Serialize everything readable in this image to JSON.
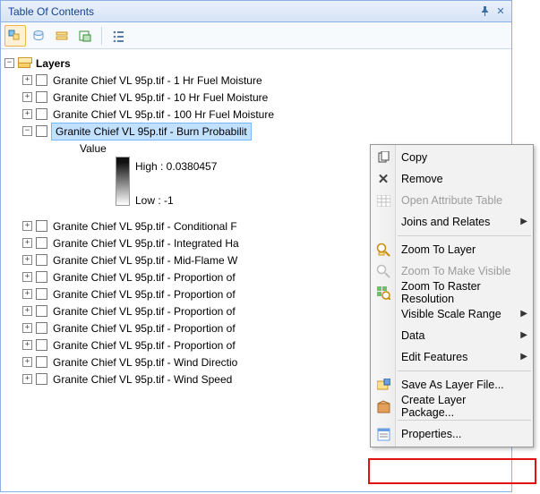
{
  "panel": {
    "title": "Table Of Contents",
    "pin_icon": "pin",
    "close_icon": "close"
  },
  "tree": {
    "root_label": "Layers",
    "layers": [
      {
        "label": "Granite Chief VL 95p.tif - 1 Hr Fuel Moisture",
        "expanded": false,
        "selected": false
      },
      {
        "label": "Granite Chief VL 95p.tif - 10 Hr Fuel Moisture",
        "expanded": false,
        "selected": false
      },
      {
        "label": "Granite Chief VL 95p.tif - 100 Hr Fuel Moisture",
        "expanded": false,
        "selected": false
      },
      {
        "label": "Granite Chief VL 95p.tif - Burn Probabilit",
        "expanded": true,
        "selected": true,
        "value_label": "Value",
        "high_label": "High : 0.0380457",
        "low_label": "Low : -1"
      },
      {
        "label": "Granite Chief VL 95p.tif - Conditional F",
        "expanded": false,
        "selected": false
      },
      {
        "label": "Granite Chief VL 95p.tif - Integrated Ha",
        "expanded": false,
        "selected": false
      },
      {
        "label": "Granite Chief VL 95p.tif - Mid-Flame W",
        "expanded": false,
        "selected": false
      },
      {
        "label": "Granite Chief VL 95p.tif - Proportion of",
        "expanded": false,
        "selected": false
      },
      {
        "label": "Granite Chief VL 95p.tif - Proportion of",
        "expanded": false,
        "selected": false
      },
      {
        "label": "Granite Chief VL 95p.tif - Proportion of",
        "expanded": false,
        "selected": false
      },
      {
        "label": "Granite Chief VL 95p.tif - Proportion of",
        "expanded": false,
        "selected": false
      },
      {
        "label": "Granite Chief VL 95p.tif - Proportion of",
        "expanded": false,
        "selected": false
      },
      {
        "label": "Granite Chief VL 95p.tif - Wind Directio",
        "expanded": false,
        "selected": false
      },
      {
        "label": "Granite Chief VL 95p.tif - Wind Speed",
        "expanded": false,
        "selected": false
      }
    ]
  },
  "context_menu": {
    "items": [
      {
        "label": "Copy",
        "icon": "copy",
        "enabled": true,
        "submenu": false
      },
      {
        "label": "Remove",
        "icon": "remove",
        "enabled": true,
        "submenu": false
      },
      {
        "label": "Open Attribute Table",
        "icon": "table",
        "enabled": false,
        "submenu": false
      },
      {
        "label": "Joins and Relates",
        "icon": "",
        "enabled": true,
        "submenu": true
      },
      {
        "sep": true
      },
      {
        "label": "Zoom To Layer",
        "icon": "zoom",
        "enabled": true,
        "submenu": false
      },
      {
        "label": "Zoom To Make Visible",
        "icon": "zoomvis",
        "enabled": false,
        "submenu": false
      },
      {
        "label": "Zoom To Raster Resolution",
        "icon": "zoomras",
        "enabled": true,
        "submenu": false
      },
      {
        "label": "Visible Scale Range",
        "icon": "",
        "enabled": true,
        "submenu": true
      },
      {
        "label": "Data",
        "icon": "",
        "enabled": true,
        "submenu": true
      },
      {
        "label": "Edit Features",
        "icon": "",
        "enabled": true,
        "submenu": true
      },
      {
        "sep": true
      },
      {
        "label": "Save As Layer File...",
        "icon": "save",
        "enabled": true,
        "submenu": false
      },
      {
        "label": "Create Layer Package...",
        "icon": "package",
        "enabled": true,
        "submenu": false
      },
      {
        "sep": true
      },
      {
        "label": "Properties...",
        "icon": "props",
        "enabled": true,
        "submenu": false
      }
    ]
  },
  "colors": {
    "selection_bg": "#c2e0ff",
    "selection_bdr": "#76b6fb",
    "panel_border": "#8ab0e6",
    "highlight_box": "#e11212"
  }
}
